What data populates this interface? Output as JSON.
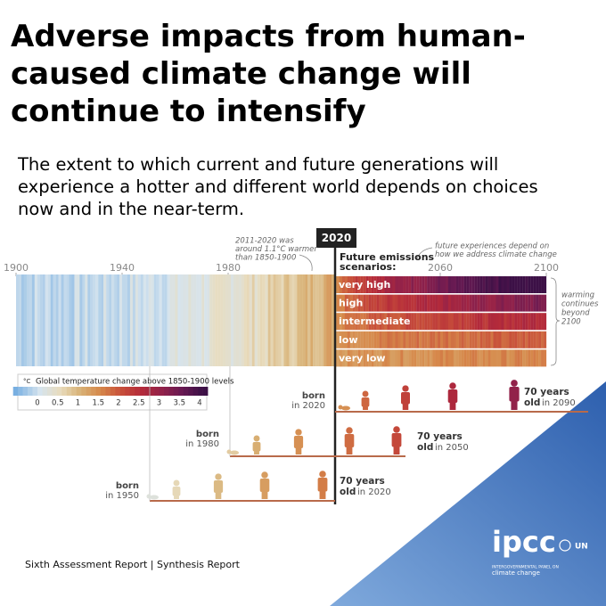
{
  "title_lines": [
    "Adverse impacts from human-",
    "caused climate change will",
    "continue to intensify"
  ],
  "subtitle_lines": [
    "The extent to which current and future generations will",
    "experience a hotter and different world depends on choices",
    "now and in the near-term."
  ],
  "axis_years": [
    1900,
    1940,
    1980,
    2060,
    2100
  ],
  "marker_year": "2020",
  "annotation_past": [
    "2011-2020 was",
    "around 1.1°C warmer",
    "than 1850-1900"
  ],
  "annotation_future": [
    "future experiences depend on",
    "how we address climate change"
  ],
  "scenarios_heading": [
    "Future emissions",
    "scenarios:"
  ],
  "scenarios": [
    "very high",
    "high",
    "intermediate",
    "low",
    "very low"
  ],
  "annotation_beyond": [
    "warming",
    "continues",
    "beyond",
    "2100"
  ],
  "legend": {
    "unit": "°C",
    "title": "Global temperature change above 1850-1900 levels",
    "ticks": [
      0,
      0.5,
      1,
      1.5,
      2,
      2.5,
      3,
      3.5,
      4
    ]
  },
  "generations": [
    {
      "born": "born",
      "born_year": "in 2020",
      "age": "70 years",
      "old": "old",
      "old_year": "in 2090"
    },
    {
      "born": "born",
      "born_year": "in 1980",
      "age": "70 years",
      "old": "old",
      "old_year": "in 2050"
    },
    {
      "born": "born",
      "born_year": "in 1950",
      "age": "70 years",
      "old": "old",
      "old_year": "in 2020"
    }
  ],
  "footer": "Sixth Assessment Report | Synthesis Report",
  "logo": {
    "name": "ipcc",
    "line1": "INTERGOVERNMENTAL PANEL ON",
    "line2": "climate change",
    "partner": "UN"
  }
}
